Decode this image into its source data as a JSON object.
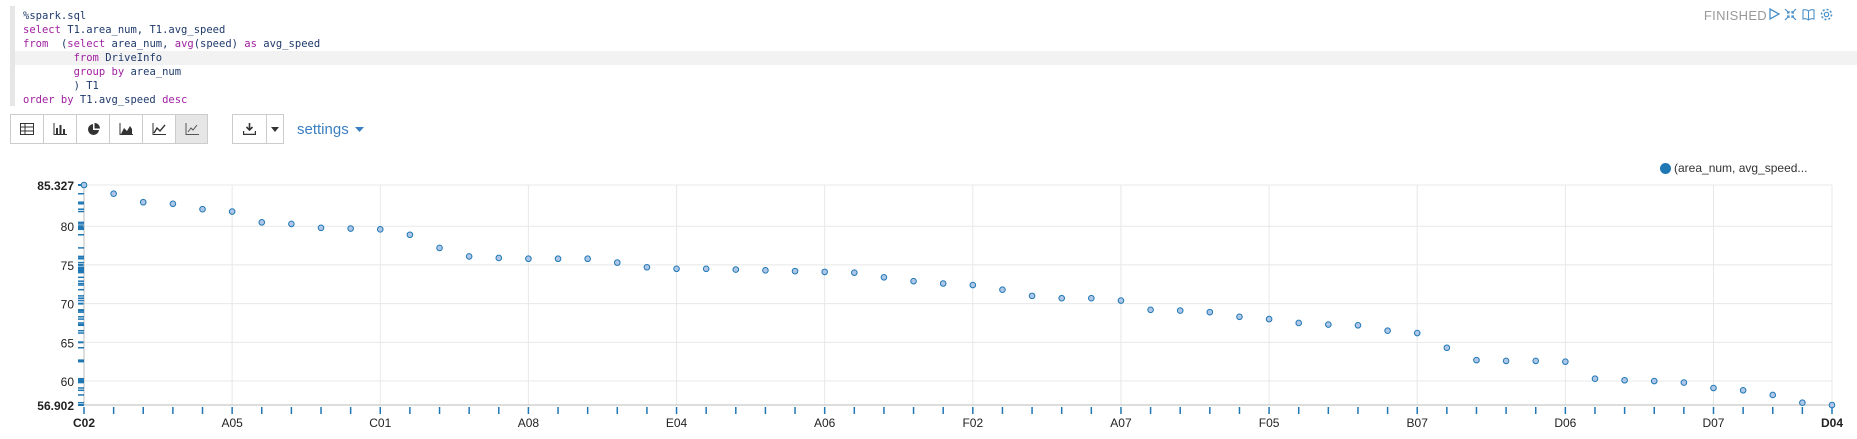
{
  "editor": {
    "lines": [
      {
        "parts": [
          {
            "t": "%spark.sql",
            "c": "plain"
          }
        ]
      },
      {
        "parts": [
          {
            "t": "select",
            "c": "kw"
          },
          {
            "t": " T1.area_num, T1.avg_speed",
            "c": "plain"
          }
        ]
      },
      {
        "parts": [
          {
            "t": "from",
            "c": "kw"
          },
          {
            "t": "  (",
            "c": "plain"
          },
          {
            "t": "select",
            "c": "kw"
          },
          {
            "t": " area_num, ",
            "c": "plain"
          },
          {
            "t": "avg",
            "c": "kw"
          },
          {
            "t": "(speed) ",
            "c": "plain"
          },
          {
            "t": "as",
            "c": "kw"
          },
          {
            "t": " avg_speed",
            "c": "plain"
          }
        ],
        "hl": false
      },
      {
        "parts": [
          {
            "t": "        ",
            "c": "plain"
          },
          {
            "t": "from",
            "c": "kw"
          },
          {
            "t": " DriveInfo",
            "c": "plain"
          }
        ],
        "hl": true
      },
      {
        "parts": [
          {
            "t": "        ",
            "c": "plain"
          },
          {
            "t": "group by",
            "c": "kw"
          },
          {
            "t": " area_num",
            "c": "plain"
          }
        ]
      },
      {
        "parts": [
          {
            "t": "        ) T1",
            "c": "plain"
          }
        ]
      },
      {
        "parts": [
          {
            "t": "order by",
            "c": "kw"
          },
          {
            "t": " T1.avg_speed ",
            "c": "plain"
          },
          {
            "t": "desc",
            "c": "kw"
          }
        ]
      }
    ]
  },
  "status": "FINISHED",
  "icons": {
    "run": "play-icon",
    "hide_editor": "collapse-icon",
    "book": "book-icon",
    "settings": "gear-icon"
  },
  "toolbar": {
    "buttons": [
      "table-icon",
      "bar-chart-icon",
      "pie-chart-icon",
      "area-chart-icon",
      "line-chart-icon",
      "scatter-chart-icon"
    ],
    "active_index": 5,
    "download_icon": "download-icon",
    "dropdown_icon": "caret-down-icon",
    "settings_label": "settings"
  },
  "legend_label": "(area_num, avg_speed...",
  "colors": {
    "series": "#1f77b4",
    "point_fill": "#aec7e8",
    "accent": "#3a7fc1"
  },
  "chart_data": {
    "type": "scatter",
    "y_tick_labels": [
      "85.327",
      "80",
      "75",
      "70",
      "65",
      "60",
      "56.902"
    ],
    "y_ticks": [
      85.327,
      80,
      75,
      70,
      65,
      60,
      56.902
    ],
    "ylim": [
      56.902,
      85.327
    ],
    "x_tick_labels": [
      "C02",
      "A05",
      "C01",
      "A08",
      "E04",
      "A06",
      "F02",
      "A07",
      "F05",
      "B07",
      "D06",
      "D07",
      "D04"
    ],
    "x_tick_positions": [
      0,
      5,
      10,
      15,
      20,
      25,
      30,
      35,
      40,
      45,
      50,
      55,
      59
    ],
    "values": [
      85.327,
      84.2,
      83.1,
      82.9,
      82.2,
      81.9,
      80.5,
      80.3,
      79.8,
      79.7,
      79.6,
      78.9,
      77.2,
      76.1,
      75.9,
      75.8,
      75.8,
      75.8,
      75.3,
      74.7,
      74.5,
      74.5,
      74.4,
      74.3,
      74.2,
      74.1,
      74.0,
      73.4,
      72.9,
      72.6,
      72.4,
      71.8,
      71.0,
      70.7,
      70.7,
      70.4,
      69.2,
      69.1,
      68.9,
      68.3,
      68.0,
      67.5,
      67.3,
      67.2,
      66.5,
      66.2,
      64.3,
      62.7,
      62.6,
      62.6,
      62.5,
      60.3,
      60.1,
      60.0,
      59.8,
      59.1,
      58.8,
      58.2,
      57.2,
      56.902
    ]
  }
}
